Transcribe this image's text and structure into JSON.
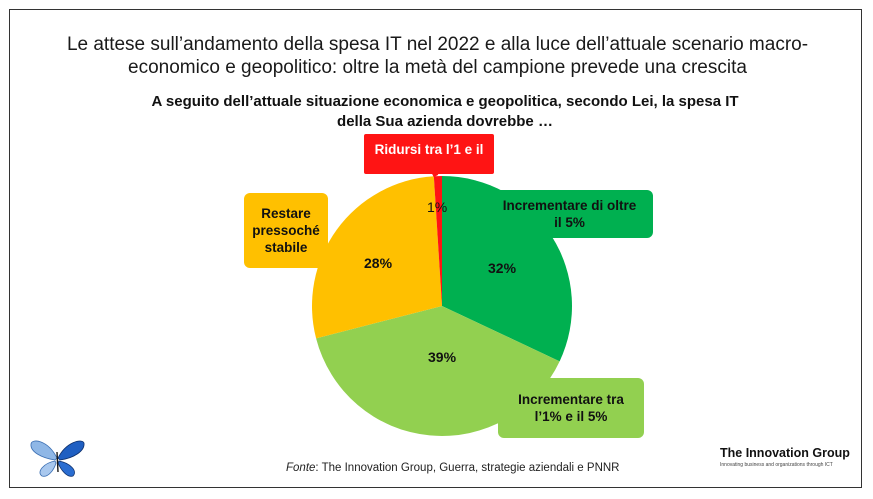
{
  "title_lines": [
    "Le attese sull’andamento della spesa IT nel 2022 e alla luce dell’attuale scenario macro-",
    "economico e geopolitico: oltre la metà del campione prevede una crescita"
  ],
  "question_lines": [
    "A seguito dell’attuale situazione economica e geopolitica, secondo Lei, la spesa IT",
    "della Sua azienda dovrebbe …"
  ],
  "source": {
    "prefix": "Fonte",
    "text": ": The Innovation Group, Guerra, strategie aziendali e PNNR"
  },
  "logo": {
    "name": "The Innovation Group",
    "tagline": "Innovating business and organizations through ICT"
  },
  "chart_data": {
    "type": "pie",
    "unit": "%",
    "slices": [
      {
        "label": "Incrementare di oltre il 5%",
        "value": 32,
        "color": "#00b050"
      },
      {
        "label": "Incrementare tra l’1% e il 5%",
        "value": 39,
        "color": "#92d050"
      },
      {
        "label": "Restare pressoché stabile",
        "value": 28,
        "color": "#ffc000"
      },
      {
        "label": "Ridursi tra l’1 e il",
        "value": 1,
        "color": "#ff1414"
      }
    ],
    "value_labels": [
      "32%",
      "39%",
      "28%",
      "1%"
    ],
    "callouts": {
      "red": [
        "Ridursi tra l’1 e il"
      ],
      "yellow": [
        "Restare",
        "pressoché",
        "stabile"
      ],
      "dgreen": [
        "Incrementare di oltre",
        "il 5%"
      ],
      "lgreen": [
        "Incrementare tra",
        "l’1% e il 5%"
      ]
    }
  }
}
